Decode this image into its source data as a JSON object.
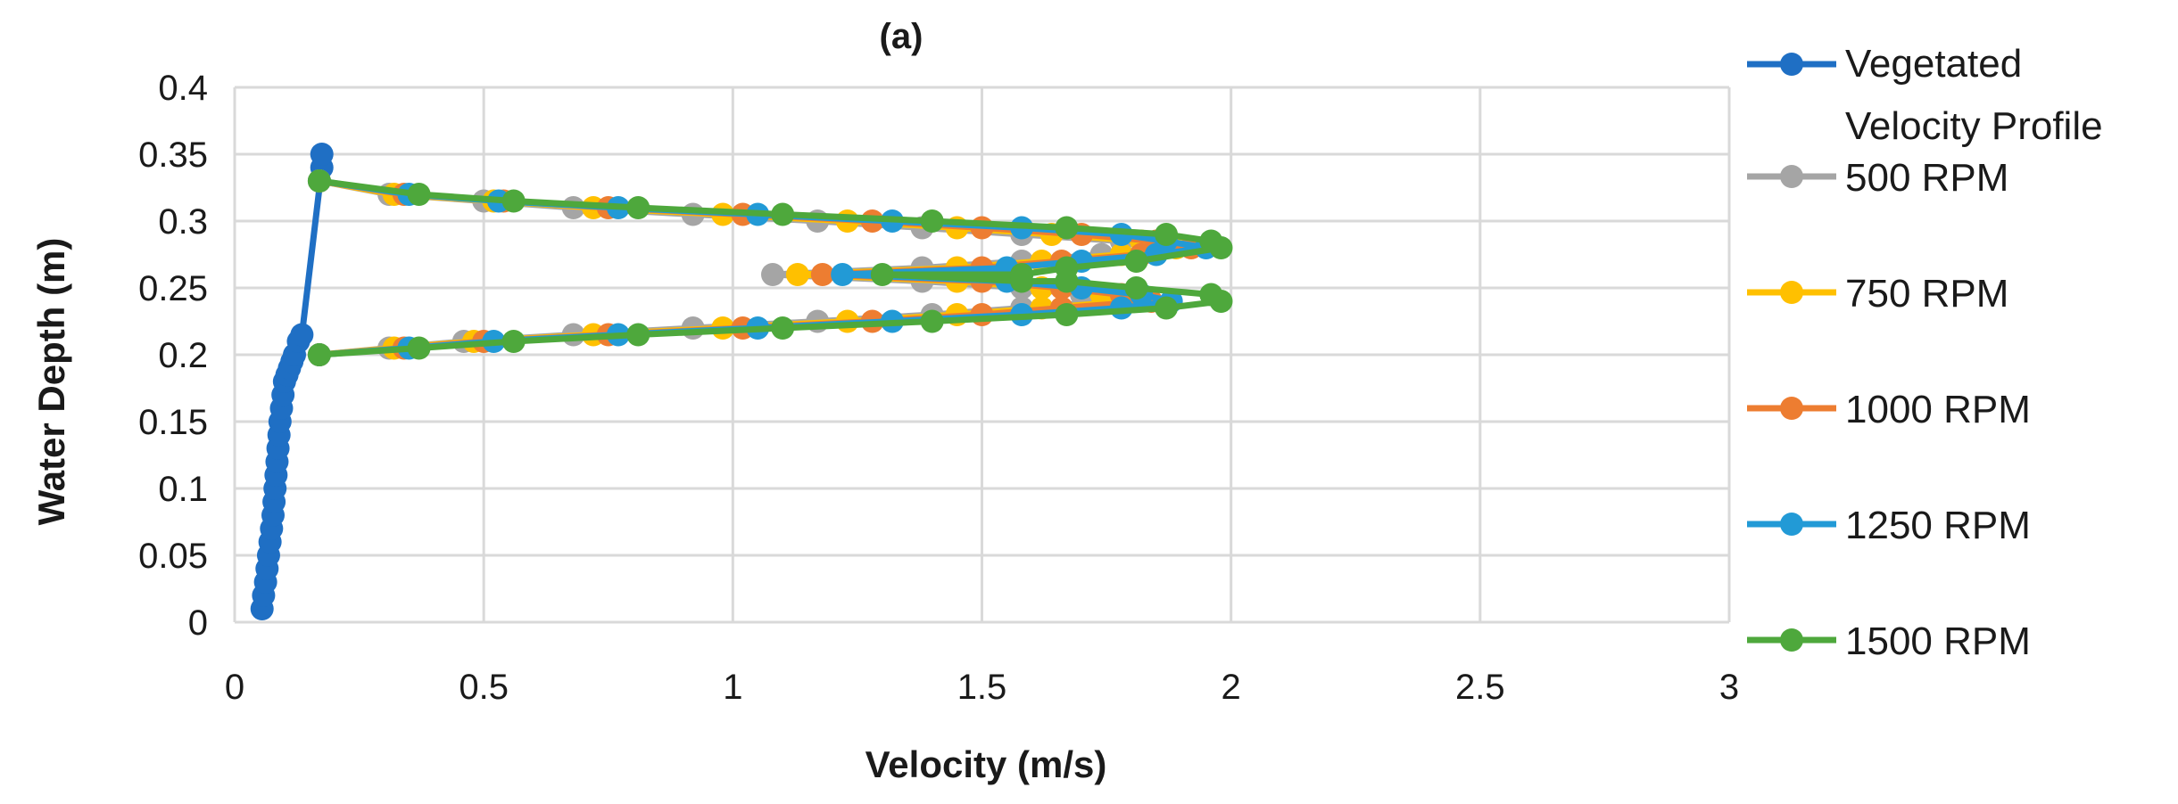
{
  "chart_data": {
    "type": "scatter",
    "title": "(a)",
    "xlabel": "Velocity (m/s)",
    "ylabel": "Water Depth (m)",
    "xlim": [
      0,
      3
    ],
    "ylim": [
      0,
      0.4
    ],
    "xticks": [
      "0",
      "0.5",
      "1",
      "1.5",
      "2",
      "2.5",
      "3"
    ],
    "yticks": [
      "0",
      "0.05",
      "0.1",
      "0.15",
      "0.2",
      "0.25",
      "0.3",
      "0.35",
      "0.4"
    ],
    "grid": true,
    "legend_position": "right",
    "series": [
      {
        "name": "Vegetated Velocity Profile",
        "legend_lines": [
          "Vegetated",
          "Velocity Profile"
        ],
        "color": "#1f6fc4",
        "x": [
          0.055,
          0.058,
          0.062,
          0.065,
          0.068,
          0.071,
          0.074,
          0.077,
          0.079,
          0.081,
          0.083,
          0.085,
          0.087,
          0.089,
          0.091,
          0.094,
          0.097,
          0.1,
          0.105,
          0.11,
          0.115,
          0.12,
          0.128,
          0.135,
          0.175,
          0.175
        ],
        "y": [
          0.01,
          0.02,
          0.03,
          0.04,
          0.05,
          0.06,
          0.07,
          0.08,
          0.09,
          0.1,
          0.11,
          0.12,
          0.13,
          0.14,
          0.15,
          0.16,
          0.17,
          0.18,
          0.185,
          0.19,
          0.195,
          0.2,
          0.21,
          0.215,
          0.34,
          0.35
        ]
      },
      {
        "name": "500 RPM",
        "color": "#a5a5a5",
        "x": [
          0.17,
          0.31,
          0.5,
          0.68,
          0.92,
          1.17,
          1.38,
          1.58,
          1.78,
          1.86,
          1.74,
          1.58,
          1.38,
          1.08,
          1.38,
          1.58,
          1.7,
          1.76,
          1.58,
          1.4,
          1.17,
          0.92,
          0.68,
          0.46,
          0.31,
          0.17
        ],
        "y": [
          0.33,
          0.32,
          0.315,
          0.31,
          0.305,
          0.3,
          0.295,
          0.29,
          0.285,
          0.28,
          0.275,
          0.27,
          0.265,
          0.26,
          0.255,
          0.25,
          0.245,
          0.24,
          0.235,
          0.23,
          0.225,
          0.22,
          0.215,
          0.21,
          0.205,
          0.2
        ]
      },
      {
        "name": "750 RPM",
        "color": "#ffc000",
        "x": [
          0.17,
          0.32,
          0.52,
          0.72,
          0.98,
          1.23,
          1.45,
          1.64,
          1.82,
          1.89,
          1.78,
          1.62,
          1.45,
          1.13,
          1.45,
          1.62,
          1.74,
          1.8,
          1.62,
          1.45,
          1.23,
          0.98,
          0.72,
          0.48,
          0.32,
          0.17
        ],
        "y": [
          0.33,
          0.32,
          0.315,
          0.31,
          0.305,
          0.3,
          0.295,
          0.29,
          0.285,
          0.28,
          0.275,
          0.27,
          0.265,
          0.26,
          0.255,
          0.25,
          0.245,
          0.24,
          0.235,
          0.23,
          0.225,
          0.22,
          0.215,
          0.21,
          0.205,
          0.2
        ]
      },
      {
        "name": "1000 RPM",
        "color": "#ed7d31",
        "x": [
          0.17,
          0.34,
          0.54,
          0.75,
          1.02,
          1.28,
          1.5,
          1.7,
          1.85,
          1.92,
          1.82,
          1.66,
          1.5,
          1.18,
          1.5,
          1.66,
          1.78,
          1.84,
          1.66,
          1.5,
          1.28,
          1.02,
          0.75,
          0.5,
          0.34,
          0.17
        ],
        "y": [
          0.33,
          0.32,
          0.315,
          0.31,
          0.305,
          0.3,
          0.295,
          0.29,
          0.285,
          0.28,
          0.275,
          0.27,
          0.265,
          0.26,
          0.255,
          0.25,
          0.245,
          0.24,
          0.235,
          0.23,
          0.225,
          0.22,
          0.215,
          0.21,
          0.205,
          0.2
        ]
      },
      {
        "name": "1250 RPM",
        "color": "#229ad6",
        "x": [
          0.17,
          0.35,
          0.53,
          0.77,
          1.05,
          1.32,
          1.58,
          1.78,
          1.87,
          1.95,
          1.85,
          1.7,
          1.55,
          1.22,
          1.55,
          1.7,
          1.82,
          1.88,
          1.78,
          1.58,
          1.32,
          1.05,
          0.77,
          0.52,
          0.35,
          0.17
        ],
        "y": [
          0.33,
          0.32,
          0.315,
          0.31,
          0.305,
          0.3,
          0.295,
          0.29,
          0.285,
          0.28,
          0.275,
          0.27,
          0.265,
          0.26,
          0.255,
          0.25,
          0.245,
          0.24,
          0.235,
          0.23,
          0.225,
          0.22,
          0.215,
          0.21,
          0.205,
          0.2
        ]
      },
      {
        "name": "1500 RPM",
        "color": "#4ea83c",
        "x": [
          0.17,
          0.37,
          0.56,
          0.81,
          1.1,
          1.4,
          1.67,
          1.87,
          1.96,
          1.98,
          1.81,
          1.67,
          1.58,
          1.3,
          1.58,
          1.67,
          1.81,
          1.96,
          1.98,
          1.87,
          1.67,
          1.4,
          1.1,
          0.81,
          0.56,
          0.37,
          0.17
        ],
        "y": [
          0.33,
          0.32,
          0.315,
          0.31,
          0.305,
          0.3,
          0.295,
          0.29,
          0.285,
          0.28,
          0.27,
          0.265,
          0.26,
          0.26,
          0.255,
          0.255,
          0.25,
          0.245,
          0.24,
          0.235,
          0.23,
          0.225,
          0.22,
          0.215,
          0.21,
          0.205,
          0.2
        ]
      }
    ]
  }
}
